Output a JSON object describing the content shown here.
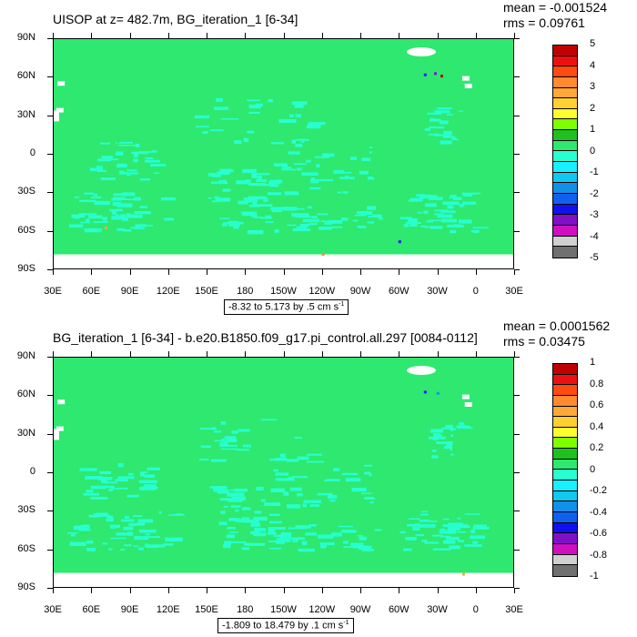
{
  "panels": [
    {
      "title": "UISOP at z= 482.7m, BG_iteration_1 [6-34]",
      "mean_label": "mean = -0.001524",
      "rms_label": "rms = 0.09761",
      "range_text": "-8.32 to 5.173 by .5 cm s",
      "range_sup": "-1",
      "colorbar_labels": [
        "5",
        "4",
        "3",
        "2",
        "1",
        "0",
        "-1",
        "-2",
        "-3",
        "-4",
        "-5"
      ]
    },
    {
      "title": "BG_iteration_1 [6-34] - b.e20.B1850.f09_g17.pi_control.all.297 [0084-0112]",
      "mean_label": "mean = 0.0001562",
      "rms_label": "rms = 0.03475",
      "range_text": "-1.809 to 18.479 by .1 cm s",
      "range_sup": "-1",
      "colorbar_labels": [
        "1",
        "0.8",
        "0.6",
        "0.4",
        "0.2",
        "0",
        "-0.2",
        "-0.4",
        "-0.6",
        "-0.8",
        "-1"
      ]
    }
  ],
  "lat_labels": [
    "90N",
    "60N",
    "30N",
    "0",
    "30S",
    "60S",
    "90S"
  ],
  "lon_labels": [
    "30E",
    "60E",
    "90E",
    "120E",
    "150E",
    "180",
    "150W",
    "120W",
    "90W",
    "60W",
    "30W",
    "0",
    "30E"
  ],
  "colorbar_colors": [
    "#c00000",
    "#ee1010",
    "#ff4a10",
    "#ff8a30",
    "#ffa838",
    "#ffd030",
    "#ffff30",
    "#80ff00",
    "#20c020",
    "#2ee870",
    "#28ffd0",
    "#18f0ff",
    "#10c8f0",
    "#1090e8",
    "#1060f0",
    "#1010f0",
    "#8010c8",
    "#d010c0",
    "#d0d0d0",
    "#707070"
  ],
  "colors": {
    "land": "#2ee870",
    "ocean": "#28ffd0",
    "missing": "#ffffff"
  }
}
